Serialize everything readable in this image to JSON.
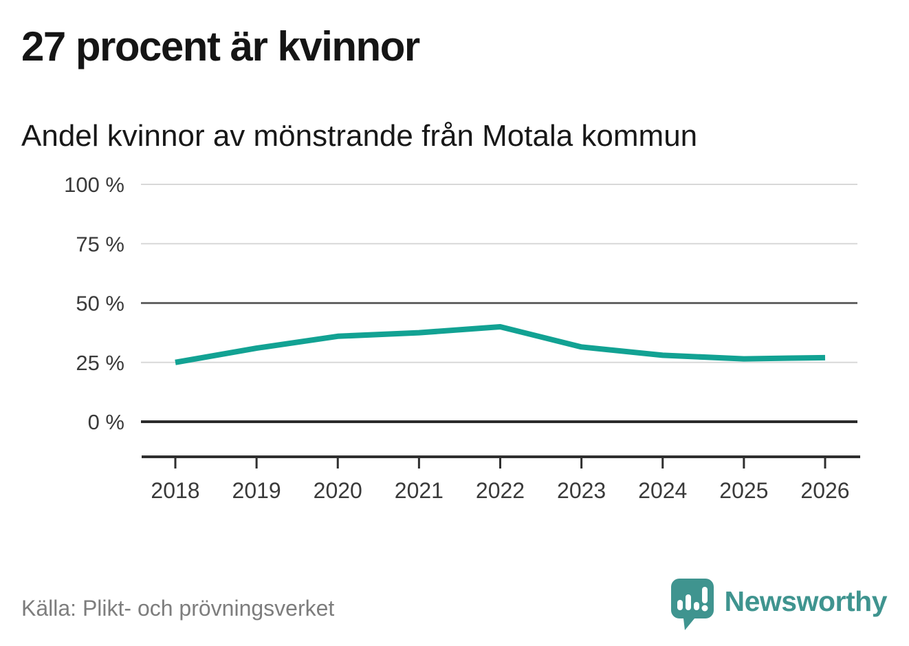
{
  "header": {
    "title": "27 procent är kvinnor",
    "subtitle": "Andel kvinnor av mönstrande från Motala kommun"
  },
  "footer": {
    "source": "Källa: Plikt- och prövningsverket",
    "brand_name": "Newsworthy",
    "brand_icon": "bar-chart-speech-bubble-icon"
  },
  "colors": {
    "line": "#12a293",
    "grid_light": "#d8d8d8",
    "grid_mid": "#646464",
    "grid_zero": "#2b2b2b",
    "axis": "#2f2f2f",
    "tick_label": "#3a3a3a",
    "title_text": "#151515",
    "source_text": "#7d7d7d",
    "brand": "#3f948f"
  },
  "chart_data": {
    "type": "line",
    "title": "Andel kvinnor av mönstrande från Motala kommun",
    "xlabel": "",
    "ylabel": "",
    "x": [
      2018,
      2019,
      2020,
      2021,
      2022,
      2023,
      2024,
      2025,
      2026
    ],
    "series": [
      {
        "name": "Andel kvinnor av mönstrande",
        "values": [
          25,
          31,
          36,
          37.5,
          40,
          31.5,
          28,
          26.5,
          27
        ]
      }
    ],
    "ylim": [
      0,
      100
    ],
    "yticks": [
      0,
      25,
      50,
      75,
      100
    ],
    "ytick_labels": [
      "0 %",
      "25 %",
      "50 %",
      "75 %",
      "100 %"
    ],
    "xtick_labels": [
      "2018",
      "2019",
      "2020",
      "2021",
      "2022",
      "2023",
      "2024",
      "2025",
      "2026"
    ],
    "grid": "horizontal",
    "legend": "none",
    "unit": "%"
  }
}
